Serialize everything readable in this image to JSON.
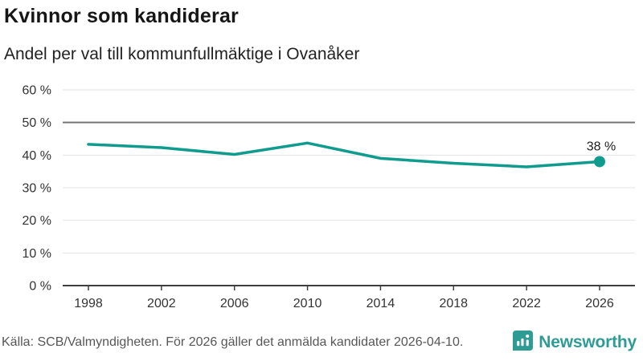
{
  "header": {
    "title": "Kvinnor som kandiderar",
    "subtitle": "Andel per val till kommunfullmäktige i Ovanåker"
  },
  "chart_data": {
    "type": "line",
    "title": "Kvinnor som kandiderar",
    "subtitle": "Andel per val till kommunfullmäktige i Ovanåker",
    "x": [
      1998,
      2002,
      2006,
      2010,
      2014,
      2018,
      2022,
      2026
    ],
    "x_tick_labels": [
      "1998",
      "2002",
      "2006",
      "2010",
      "2014",
      "2018",
      "2022",
      "2026"
    ],
    "values": [
      43.3,
      42.3,
      40.2,
      43.7,
      39.0,
      37.5,
      36.4,
      38
    ],
    "y_ticks": [
      0,
      10,
      20,
      30,
      40,
      50,
      60
    ],
    "y_tick_labels": [
      "0 %",
      "10 %",
      "20 %",
      "30 %",
      "40 %",
      "50 %",
      "60 %"
    ],
    "ylim": [
      0,
      60
    ],
    "reference_line": 50,
    "line_color": "#0f9b8e",
    "end_label": "38 %",
    "grid": "horizontal gridlines only, darker reference line at 50 %",
    "legend": "none",
    "xlabel": "",
    "ylabel": ""
  },
  "footer": {
    "source": "Källa: SCB/Valmyndigheten. För 2026 gäller det anmälda kandidater 2026-04-10.",
    "brand": "Newsworthy",
    "brand_color": "#2e9c94"
  }
}
